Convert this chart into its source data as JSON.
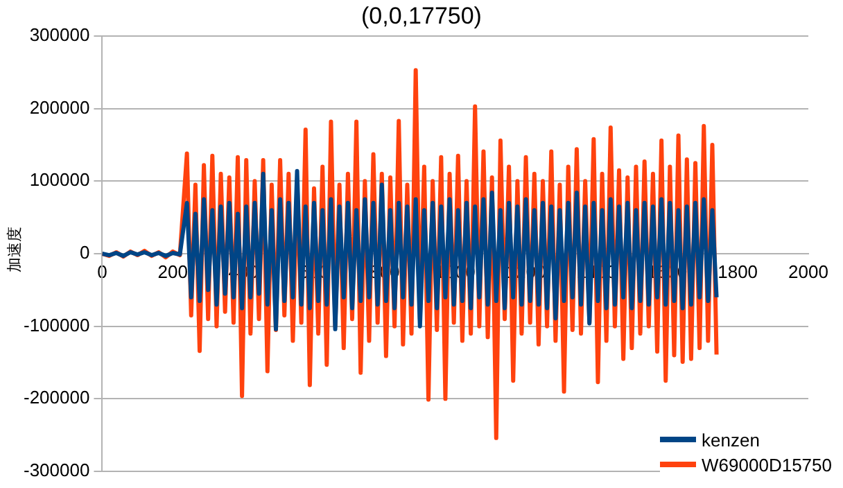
{
  "chart_data": {
    "type": "line",
    "title": "(0,0,17750)",
    "ylabel": "加速度",
    "xlim": [
      0,
      2000
    ],
    "xticks": [
      0,
      200,
      400,
      600,
      800,
      1000,
      1200,
      1400,
      1600,
      1800,
      2000
    ],
    "ylim": [
      -300000,
      300000
    ],
    "yticks": [
      -300000,
      -200000,
      -100000,
      0,
      100000,
      200000,
      300000
    ],
    "grid": "y",
    "legend": "bottom right",
    "marker": "none",
    "line_style": "solid",
    "x": [
      0,
      20,
      40,
      60,
      80,
      100,
      120,
      140,
      160,
      180,
      200,
      220,
      240,
      252,
      264,
      276,
      288,
      300,
      312,
      324,
      336,
      348,
      360,
      372,
      384,
      396,
      408,
      420,
      432,
      444,
      456,
      468,
      480,
      492,
      504,
      516,
      528,
      540,
      552,
      564,
      576,
      588,
      600,
      612,
      624,
      636,
      648,
      660,
      672,
      684,
      696,
      708,
      720,
      732,
      744,
      756,
      768,
      780,
      792,
      804,
      816,
      828,
      840,
      852,
      864,
      876,
      888,
      900,
      912,
      924,
      936,
      948,
      960,
      972,
      984,
      996,
      1008,
      1020,
      1032,
      1044,
      1056,
      1068,
      1080,
      1092,
      1104,
      1116,
      1128,
      1140,
      1152,
      1164,
      1176,
      1188,
      1200,
      1212,
      1224,
      1236,
      1248,
      1260,
      1272,
      1284,
      1296,
      1308,
      1320,
      1332,
      1344,
      1356,
      1368,
      1380,
      1392,
      1404,
      1416,
      1428,
      1440,
      1452,
      1464,
      1476,
      1488,
      1500,
      1512,
      1524,
      1536,
      1548,
      1560,
      1572,
      1584,
      1596,
      1608,
      1620,
      1632,
      1644,
      1656,
      1668,
      1680,
      1692,
      1704,
      1716,
      1728,
      1740
    ],
    "series": [
      {
        "name": "kenzen",
        "color": "#004586",
        "values": [
          0,
          -2000,
          1000,
          -3000,
          2000,
          -1000,
          2000,
          -2000,
          1000,
          -3000,
          1000,
          -1000,
          70000,
          -60000,
          55000,
          -65000,
          75000,
          -50000,
          60000,
          -70000,
          65000,
          -55000,
          70000,
          -60000,
          55000,
          -75000,
          65000,
          -60000,
          70000,
          -55000,
          110000,
          -70000,
          60000,
          -104000,
          75000,
          -65000,
          70000,
          -60000,
          114000,
          -70000,
          65000,
          -75000,
          70000,
          -65000,
          60000,
          -70000,
          75000,
          -104000,
          65000,
          -60000,
          70000,
          -75000,
          60000,
          -65000,
          75000,
          -60000,
          70000,
          -70000,
          95000,
          -65000,
          60000,
          -75000,
          70000,
          -60000,
          65000,
          -70000,
          75000,
          -100000,
          60000,
          -65000,
          70000,
          -75000,
          65000,
          -60000,
          75000,
          -70000,
          60000,
          -65000,
          70000,
          -75000,
          65000,
          -60000,
          75000,
          -70000,
          84000,
          -65000,
          60000,
          -75000,
          70000,
          -60000,
          65000,
          -70000,
          75000,
          -65000,
          60000,
          -70000,
          70000,
          -75000,
          65000,
          -89000,
          60000,
          -65000,
          70000,
          -60000,
          84000,
          -70000,
          65000,
          -96000,
          70000,
          -65000,
          60000,
          -75000,
          75000,
          -70000,
          65000,
          -60000,
          70000,
          -75000,
          60000,
          -65000,
          70000,
          -70000,
          65000,
          -60000,
          75000,
          -70000,
          70000,
          -65000,
          60000,
          -75000,
          65000,
          -70000,
          70000,
          -60000,
          75000,
          -65000,
          60000,
          -60000
        ]
      },
      {
        "name": "W69000D15750",
        "color": "#ff420e",
        "values": [
          0,
          -3000,
          2000,
          -4000,
          3000,
          -2000,
          4000,
          -3000,
          2000,
          -5000,
          3000,
          -2000,
          138000,
          -85000,
          95000,
          -134000,
          122000,
          -90000,
          135000,
          -100000,
          110000,
          -80000,
          105000,
          -95000,
          133000,
          -196000,
          129000,
          -110000,
          100000,
          -90000,
          129000,
          -162000,
          95000,
          -105000,
          129000,
          -85000,
          110000,
          -120000,
          100000,
          -95000,
          171000,
          -181000,
          90000,
          -110000,
          120000,
          -153000,
          182000,
          -100000,
          95000,
          -130000,
          110000,
          -90000,
          182000,
          -164000,
          100000,
          -120000,
          137000,
          -95000,
          110000,
          -141000,
          105000,
          -100000,
          183000,
          -125000,
          95000,
          -110000,
          253000,
          -90000,
          120000,
          -201000,
          100000,
          -105000,
          133000,
          -200000,
          110000,
          -95000,
          135000,
          -120000,
          100000,
          -110000,
          203000,
          -100000,
          141000,
          -115000,
          105000,
          -254000,
          156000,
          -90000,
          120000,
          -175000,
          100000,
          -110000,
          133000,
          -95000,
          110000,
          -125000,
          100000,
          -100000,
          141000,
          -120000,
          95000,
          -190000,
          120000,
          -105000,
          144000,
          -110000,
          100000,
          -95000,
          158000,
          -177000,
          110000,
          -120000,
          174000,
          -100000,
          115000,
          -145000,
          105000,
          -130000,
          120000,
          -110000,
          127000,
          -100000,
          110000,
          -135000,
          156000,
          -175000,
          120000,
          -140000,
          163000,
          -149000,
          130000,
          -145000,
          125000,
          -130000,
          176000,
          -120000,
          150000,
          -139000
        ]
      }
    ]
  }
}
